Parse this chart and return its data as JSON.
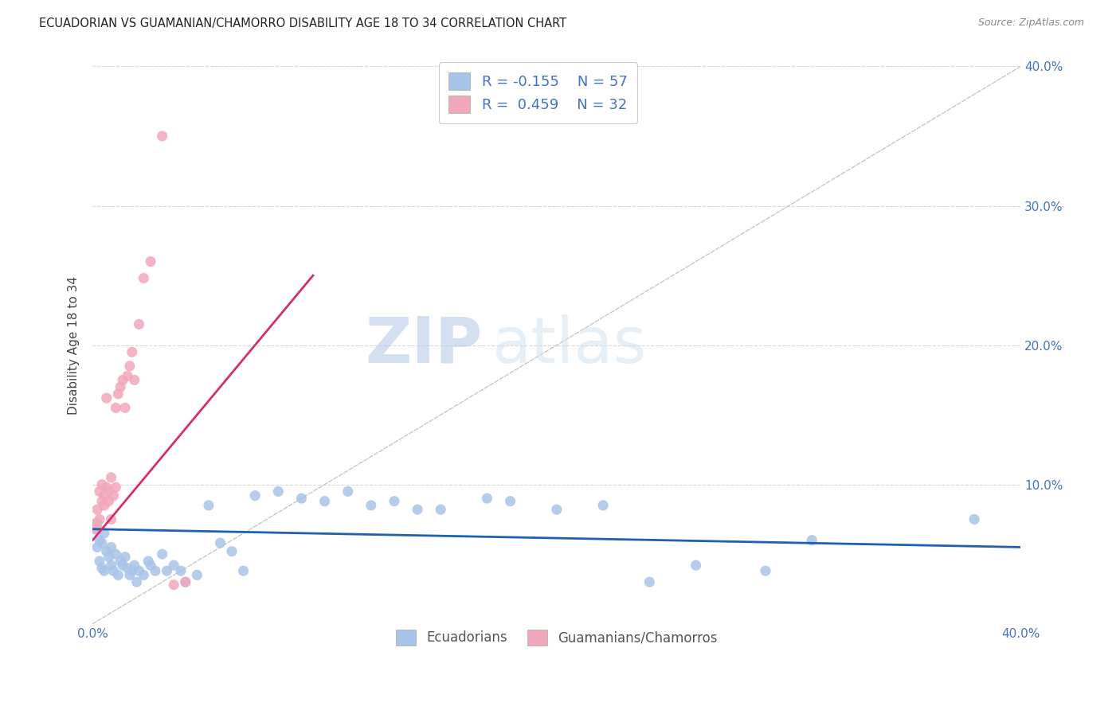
{
  "title": "ECUADORIAN VS GUAMANIAN/CHAMORRO DISABILITY AGE 18 TO 34 CORRELATION CHART",
  "source": "Source: ZipAtlas.com",
  "ylabel": "Disability Age 18 to 34",
  "xlim": [
    0.0,
    0.4
  ],
  "ylim": [
    0.0,
    0.4
  ],
  "blue_color": "#a8c4e8",
  "pink_color": "#f2a8bc",
  "blue_line_color": "#2060b0",
  "pink_line_color": "#d03070",
  "diagonal_color": "#c8c8c8",
  "legend_label_blue": "Ecuadorians",
  "legend_label_pink": "Guamanians/Chamorros",
  "watermark_zip": "ZIP",
  "watermark_atlas": "atlas",
  "blue_R": -0.155,
  "blue_N": 57,
  "pink_R": 0.459,
  "pink_N": 32,
  "blue_scatter_x": [
    0.001,
    0.002,
    0.002,
    0.003,
    0.003,
    0.004,
    0.004,
    0.005,
    0.005,
    0.006,
    0.007,
    0.008,
    0.008,
    0.009,
    0.01,
    0.011,
    0.012,
    0.013,
    0.014,
    0.015,
    0.016,
    0.017,
    0.018,
    0.019,
    0.02,
    0.022,
    0.024,
    0.025,
    0.027,
    0.03,
    0.032,
    0.035,
    0.038,
    0.04,
    0.045,
    0.05,
    0.055,
    0.06,
    0.065,
    0.07,
    0.08,
    0.09,
    0.1,
    0.11,
    0.12,
    0.13,
    0.14,
    0.15,
    0.17,
    0.18,
    0.2,
    0.22,
    0.24,
    0.26,
    0.29,
    0.31,
    0.38
  ],
  "blue_scatter_y": [
    0.068,
    0.072,
    0.055,
    0.06,
    0.045,
    0.058,
    0.04,
    0.065,
    0.038,
    0.052,
    0.048,
    0.042,
    0.055,
    0.038,
    0.05,
    0.035,
    0.045,
    0.042,
    0.048,
    0.04,
    0.035,
    0.038,
    0.042,
    0.03,
    0.038,
    0.035,
    0.045,
    0.042,
    0.038,
    0.05,
    0.038,
    0.042,
    0.038,
    0.03,
    0.035,
    0.085,
    0.058,
    0.052,
    0.038,
    0.092,
    0.095,
    0.09,
    0.088,
    0.095,
    0.085,
    0.088,
    0.082,
    0.082,
    0.09,
    0.088,
    0.082,
    0.085,
    0.03,
    0.042,
    0.038,
    0.06,
    0.075
  ],
  "pink_scatter_x": [
    0.001,
    0.002,
    0.002,
    0.003,
    0.003,
    0.004,
    0.004,
    0.005,
    0.005,
    0.006,
    0.006,
    0.007,
    0.007,
    0.008,
    0.008,
    0.009,
    0.01,
    0.01,
    0.011,
    0.012,
    0.013,
    0.014,
    0.015,
    0.016,
    0.017,
    0.018,
    0.02,
    0.022,
    0.025,
    0.03,
    0.035,
    0.04
  ],
  "pink_scatter_y": [
    0.072,
    0.068,
    0.082,
    0.075,
    0.095,
    0.088,
    0.1,
    0.092,
    0.085,
    0.098,
    0.162,
    0.095,
    0.088,
    0.105,
    0.075,
    0.092,
    0.155,
    0.098,
    0.165,
    0.17,
    0.175,
    0.155,
    0.178,
    0.185,
    0.195,
    0.175,
    0.215,
    0.248,
    0.26,
    0.35,
    0.028,
    0.03
  ],
  "pink_line_x0": 0.0,
  "pink_line_y0": 0.06,
  "pink_line_x1": 0.095,
  "pink_line_y1": 0.25,
  "blue_line_x0": 0.0,
  "blue_line_y0": 0.068,
  "blue_line_x1": 0.4,
  "blue_line_y1": 0.055
}
